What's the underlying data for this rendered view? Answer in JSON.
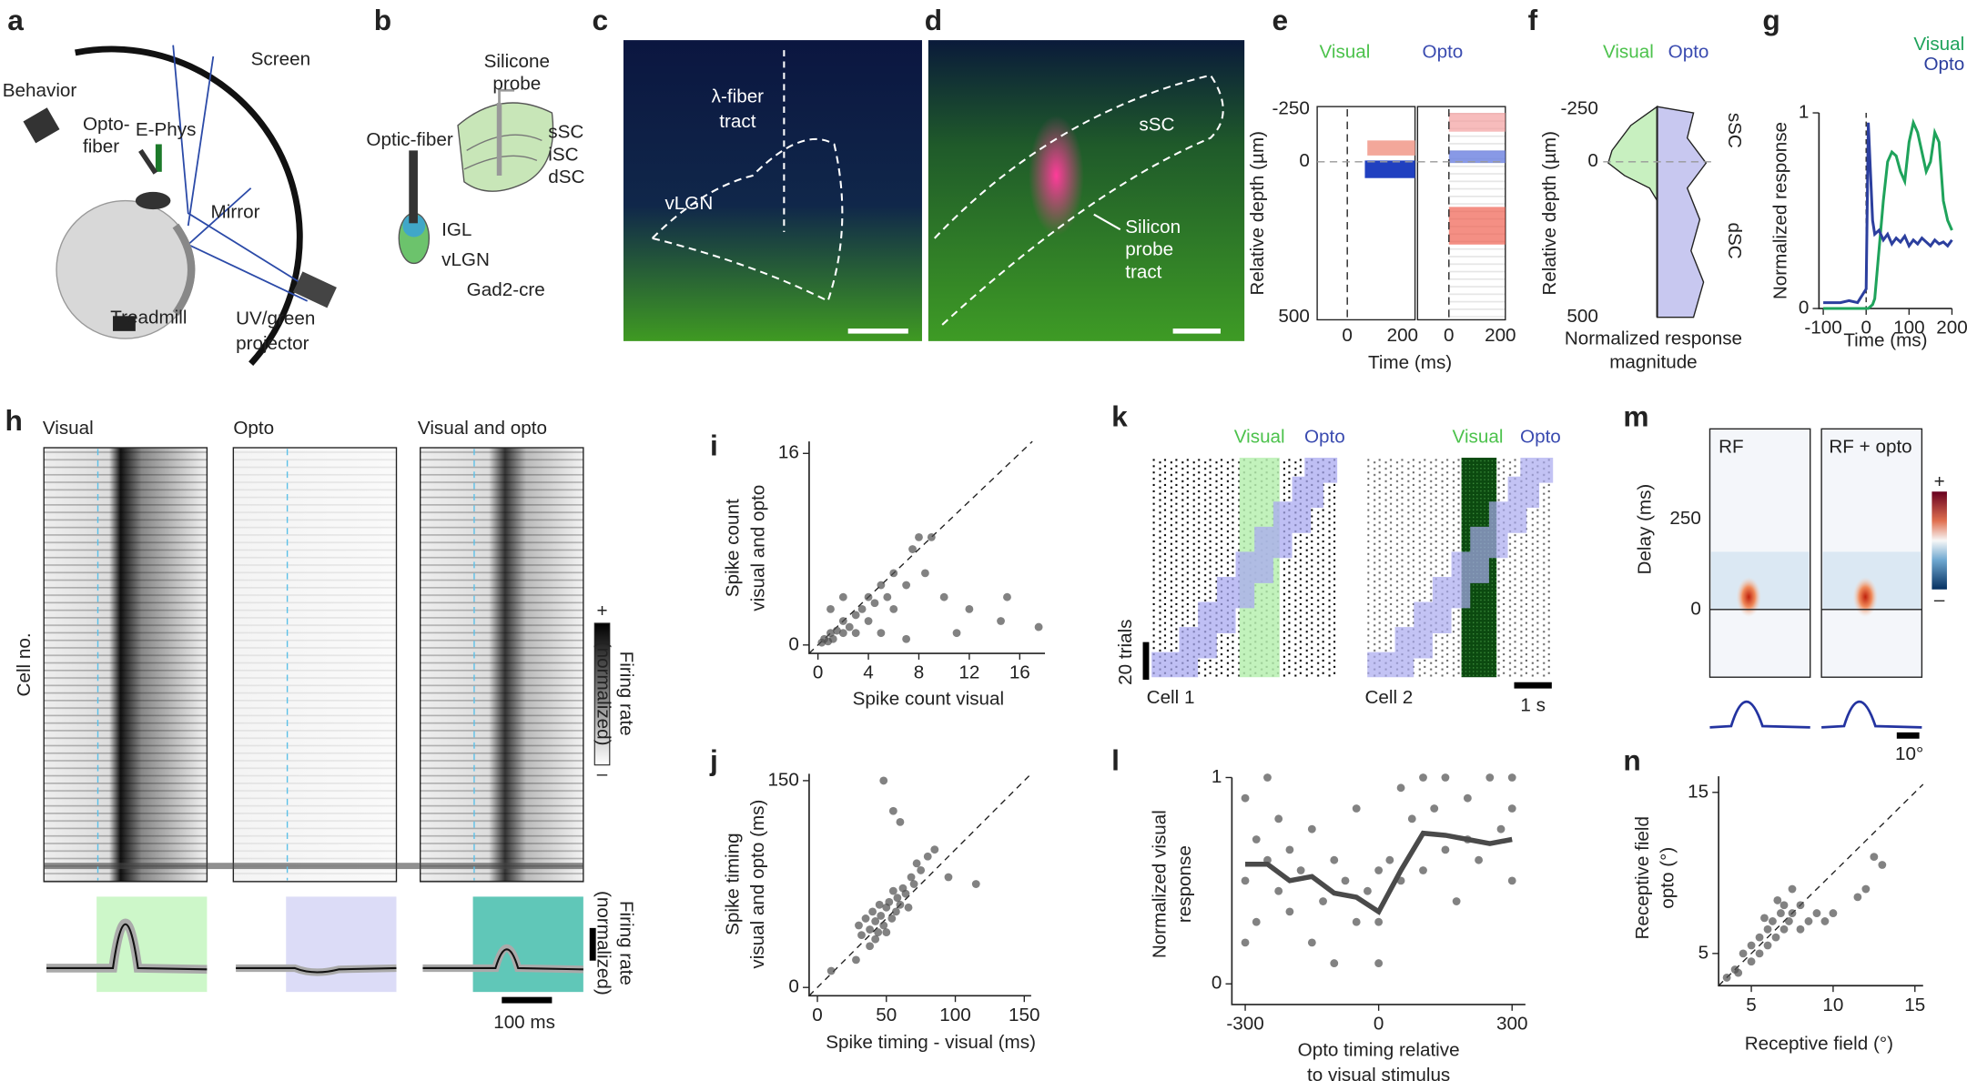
{
  "panel_letters": [
    "a",
    "b",
    "c",
    "d",
    "e",
    "f",
    "g",
    "h",
    "i",
    "j",
    "k",
    "l",
    "m",
    "n"
  ],
  "a": {
    "screen": "Screen",
    "behavior": "Behavior",
    "opto_fiber": [
      "Opto-",
      "fiber"
    ],
    "ephys": "E-Phys",
    "mirror": "Mirror",
    "treadmill": "Treadmill",
    "projector": [
      "UV/green",
      "projector"
    ]
  },
  "b": {
    "probe": [
      "Silicone",
      "probe"
    ],
    "optic_fiber": "Optic-fiber",
    "regions": [
      "sSC",
      "iSC",
      "dSC"
    ],
    "igl": "IGL",
    "vlgn": "vLGN",
    "line": "Gad2-cre"
  },
  "c": {
    "tract": [
      "λ-fiber",
      "tract"
    ],
    "vlgn": "vLGN"
  },
  "d": {
    "ssc": "sSC",
    "tract": [
      "Silicon",
      "probe",
      "tract"
    ]
  },
  "e": {
    "conditions": [
      "Visual",
      "Opto"
    ],
    "ylabel": "Relative depth (µm)",
    "yticks": [
      -250,
      0,
      500
    ],
    "xticks": [
      0,
      200
    ],
    "xlabel": "Time (ms)"
  },
  "f": {
    "conditions": [
      "Visual",
      "Opto"
    ],
    "ylabel": "Relative depth (µm)",
    "yticks": [
      -250,
      0,
      500
    ],
    "regions": [
      "sSC",
      "dSC"
    ],
    "xlabel": [
      "Normalized response",
      "magnitude"
    ]
  },
  "h": {
    "conditions": [
      "Visual",
      "Opto",
      "Visual and opto"
    ],
    "ylabel": "Cell no.",
    "colorbar_label": [
      "Firing rate",
      "(normalized)"
    ],
    "colorbar_ends": [
      "+",
      "–"
    ],
    "trace_label": [
      "Firing rate",
      "(normalized)"
    ],
    "scale": "100 ms"
  },
  "k": {
    "conditions": [
      "Visual",
      "Opto"
    ],
    "scale_trials": "20 trials",
    "cells": [
      "Cell 1",
      "Cell 2"
    ],
    "scale_time": "1 s"
  },
  "m": {
    "panels": [
      "RF",
      "RF + opto"
    ],
    "ylabel": "Delay (ms)",
    "yticks": [
      0,
      250
    ],
    "colorbar_ends": [
      "+",
      "–"
    ],
    "scale": "10°"
  },
  "chart_data": [
    {
      "type": "line",
      "xlabel": "Time (ms)",
      "ylabel": "Normalized response",
      "x": [
        -100,
        -80,
        -60,
        -40,
        -20,
        0,
        5,
        10,
        15,
        20,
        30,
        40,
        50,
        60,
        70,
        80,
        90,
        100,
        110,
        120,
        130,
        140,
        150,
        160,
        170,
        180,
        190,
        200
      ],
      "series": [
        {
          "name": "Visual",
          "color": "#1fa35b",
          "values": [
            0,
            0,
            0,
            0,
            0,
            0,
            0,
            0.01,
            0.02,
            0.05,
            0.3,
            0.55,
            0.75,
            0.8,
            0.78,
            0.7,
            0.65,
            0.85,
            0.95,
            0.9,
            0.8,
            0.7,
            0.75,
            0.9,
            0.85,
            0.55,
            0.45,
            0.4
          ]
        },
        {
          "name": "Opto",
          "color": "#2c3f9e",
          "values": [
            0.03,
            0.03,
            0.03,
            0.04,
            0.03,
            0.1,
            0.95,
            0.7,
            0.45,
            0.38,
            0.4,
            0.35,
            0.38,
            0.33,
            0.36,
            0.34,
            0.37,
            0.32,
            0.35,
            0.33,
            0.36,
            0.34,
            0.32,
            0.35,
            0.33,
            0.34,
            0.32,
            0.35
          ]
        }
      ],
      "xlim": [
        -110,
        200
      ],
      "ylim": [
        0,
        1
      ],
      "xticks": [
        -100,
        0,
        100,
        200
      ],
      "yticks": [
        0,
        1
      ]
    },
    {
      "type": "scatter",
      "xlabel": "Spike count visual",
      "ylabel": [
        "Spike count",
        "visual and opto"
      ],
      "color": "#4d4d4d",
      "x": [
        0.3,
        0.5,
        0.8,
        1,
        1.2,
        1.5,
        2,
        2,
        2.5,
        3,
        3,
        3.5,
        4,
        4,
        4.5,
        5,
        5.5,
        6,
        6,
        7,
        7.5,
        8,
        8.5,
        9,
        10,
        11,
        12,
        14.5,
        15,
        17.5,
        1,
        2,
        5,
        7
      ],
      "values": [
        0.2,
        0.5,
        0.3,
        1,
        0.5,
        1.2,
        1,
        2,
        1.5,
        2.5,
        1,
        3,
        2,
        4,
        3.5,
        5,
        4,
        3,
        6,
        5,
        8,
        9,
        6,
        9,
        4,
        1,
        3,
        2,
        4,
        1.5,
        3,
        4,
        1,
        0.5
      ],
      "xlim": [
        -0.7,
        18
      ],
      "ylim": [
        -0.7,
        17
      ],
      "xticks": [
        0,
        4,
        8,
        12,
        16
      ],
      "yticks": [
        0,
        16
      ]
    },
    {
      "type": "scatter",
      "xlabel": "Spike timing - visual (ms)",
      "ylabel": [
        "Spike timing",
        "visual and opto (ms)"
      ],
      "color": "#4d4d4d",
      "x": [
        30,
        32,
        35,
        38,
        40,
        42,
        44,
        45,
        46,
        48,
        50,
        52,
        54,
        55,
        57,
        58,
        60,
        62,
        64,
        66,
        68,
        70,
        72,
        75,
        80,
        85,
        95,
        115,
        48,
        55,
        60,
        10,
        28,
        38,
        42,
        50
      ],
      "values": [
        45,
        38,
        50,
        42,
        55,
        48,
        40,
        60,
        52,
        45,
        58,
        62,
        50,
        70,
        55,
        65,
        60,
        72,
        68,
        58,
        80,
        75,
        90,
        85,
        95,
        100,
        80,
        75,
        150,
        128,
        120,
        12,
        20,
        30,
        35,
        40
      ],
      "xlim": [
        -6,
        155
      ],
      "ylim": [
        -6,
        155
      ],
      "xticks": [
        0,
        50,
        100,
        150
      ],
      "yticks": [
        0,
        150
      ]
    },
    {
      "type": "scatter",
      "xlabel": [
        "Opto timing relative",
        "to visual stimulus"
      ],
      "ylabel": [
        "Normalized visual",
        "response"
      ],
      "color": "#4d4d4d",
      "x": [
        -300,
        -300,
        -300,
        -275,
        -275,
        -250,
        -250,
        -225,
        -225,
        -200,
        -200,
        -175,
        -150,
        -150,
        -125,
        -100,
        -100,
        -75,
        -50,
        -50,
        -25,
        0,
        0,
        0,
        25,
        50,
        50,
        75,
        100,
        100,
        125,
        150,
        150,
        175,
        200,
        200,
        225,
        250,
        275,
        300,
        300,
        300
      ],
      "values": [
        0.9,
        0.5,
        0.2,
        0.7,
        0.3,
        1.0,
        0.6,
        0.45,
        0.8,
        0.35,
        0.65,
        0.55,
        0.2,
        0.75,
        0.4,
        0.6,
        0.1,
        0.5,
        0.3,
        0.85,
        0.45,
        0.1,
        0.3,
        0.55,
        0.6,
        0.5,
        0.95,
        0.8,
        1.0,
        0.55,
        0.85,
        0.65,
        1.0,
        0.4,
        0.9,
        0.7,
        0.6,
        1.0,
        0.75,
        0.5,
        0.85,
        1.0
      ],
      "line": {
        "color": "#4a4a4a",
        "x": [
          -300,
          -250,
          -200,
          -150,
          -100,
          -50,
          0,
          50,
          100,
          150,
          200,
          250,
          300
        ],
        "values": [
          0.58,
          0.58,
          0.5,
          0.52,
          0.44,
          0.42,
          0.35,
          0.55,
          0.73,
          0.72,
          0.7,
          0.68,
          0.7
        ]
      },
      "xlim": [
        -330,
        330
      ],
      "ylim": [
        -0.1,
        1
      ],
      "xticks": [
        -300,
        0,
        300
      ],
      "yticks": [
        0,
        1
      ]
    },
    {
      "type": "scatter",
      "xlabel": "Receptive field (°)",
      "ylabel": [
        "Receptive field",
        "opto (°)"
      ],
      "color": "#4d4d4d",
      "x": [
        3.5,
        4,
        4.2,
        4.5,
        5,
        5,
        5.5,
        5.5,
        6,
        6,
        6.3,
        6.5,
        6.8,
        7,
        7,
        7.3,
        7.5,
        7.5,
        8,
        8,
        8.5,
        9,
        9.5,
        10,
        11.5,
        12,
        13,
        12.5,
        5.8,
        6.6
      ],
      "values": [
        3.5,
        4,
        3.8,
        5,
        4.5,
        5.5,
        6,
        5,
        6.5,
        5.5,
        7,
        6,
        7.5,
        8,
        6.5,
        7,
        9,
        7.5,
        8,
        6.5,
        7,
        7.5,
        7,
        7.5,
        8.5,
        9,
        10.5,
        11,
        7.2,
        8.3
      ],
      "xlim": [
        3,
        15.5
      ],
      "ylim": [
        3,
        16
      ],
      "xticks": [
        5,
        10,
        15
      ],
      "yticks": [
        5,
        15
      ]
    }
  ]
}
